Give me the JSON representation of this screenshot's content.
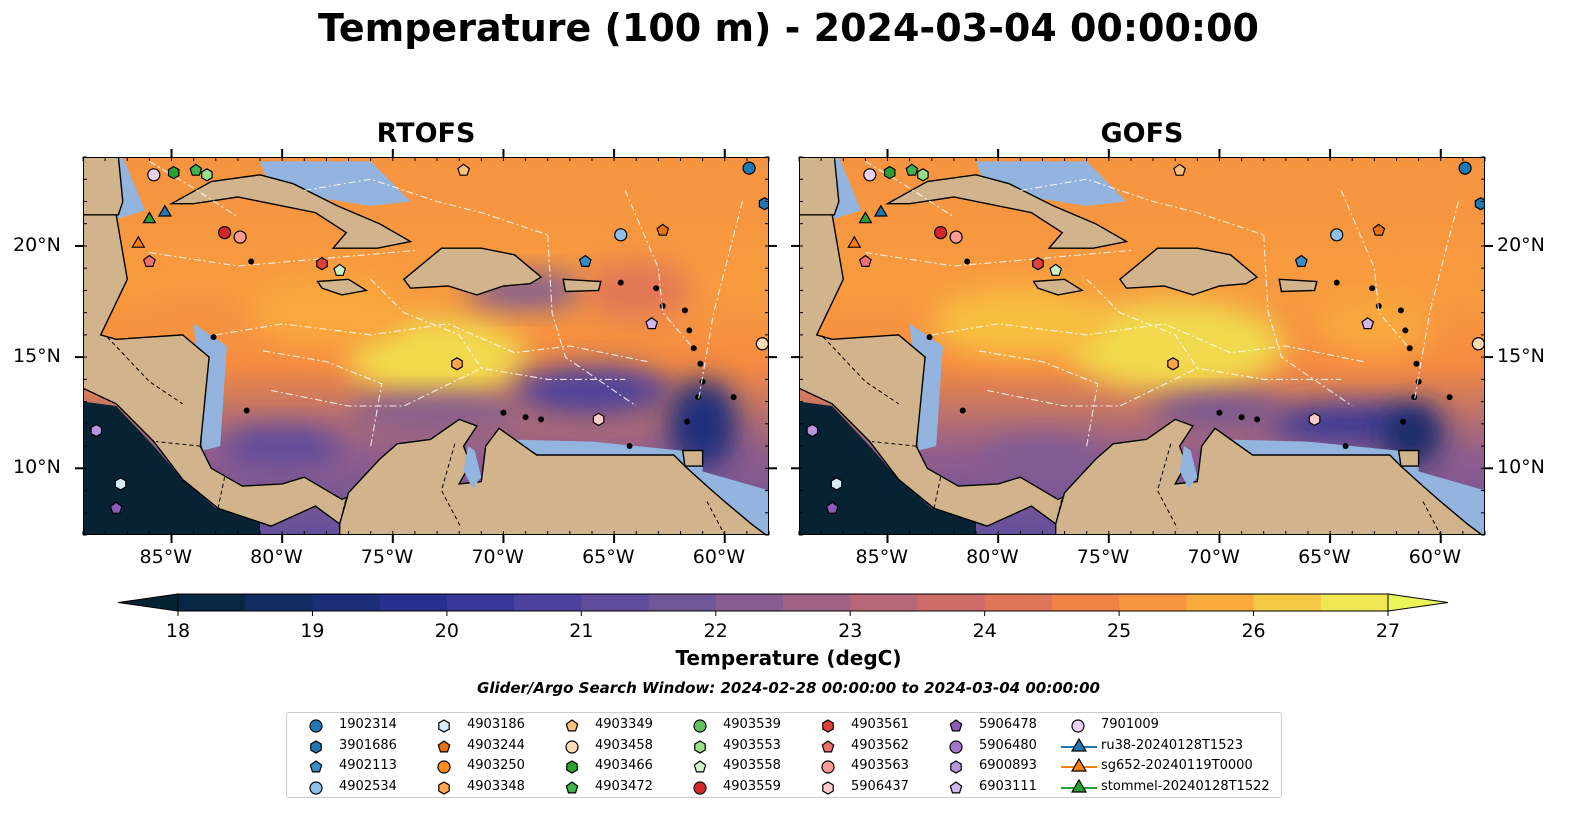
{
  "title": "Temperature (100 m) - 2024-03-04 00:00:00",
  "panels": [
    {
      "title": "RTOFS",
      "yaxis_side": "left"
    },
    {
      "title": "GOFS",
      "yaxis_side": "right"
    }
  ],
  "map_extent": {
    "lon": [
      -89,
      -58
    ],
    "lat": [
      7,
      24
    ]
  },
  "lon_ticks": [
    -85,
    -80,
    -75,
    -70,
    -65,
    -60
  ],
  "lon_tick_labels": [
    "85°W",
    "80°W",
    "75°W",
    "70°W",
    "65°W",
    "60°W"
  ],
  "lat_ticks": [
    10,
    15,
    20
  ],
  "lat_tick_labels": [
    "10°N",
    "15°N",
    "20°N"
  ],
  "colors": {
    "land": "#d2b48c",
    "shallow": "#93b4de",
    "colormap": "thermal"
  },
  "colorbar": {
    "min": 18,
    "max": 27,
    "step": 0.5,
    "ticks": [
      "18",
      "19",
      "20",
      "21",
      "22",
      "23",
      "24",
      "25",
      "26",
      "27"
    ],
    "label": "Temperature (degC)"
  },
  "search_window": "Glider/Argo Search Window: 2024-02-28 00:00:00 to 2024-03-04 00:00:00",
  "legend": [
    {
      "label": "1902314",
      "marker": "circle",
      "color": "#1f77b4"
    },
    {
      "label": "3901686",
      "marker": "hexagon",
      "color": "#1f77b4"
    },
    {
      "label": "4902113",
      "marker": "pentagon",
      "color": "#3a8cc8"
    },
    {
      "label": "4902534",
      "marker": "circle",
      "color": "#8fc0e8"
    },
    {
      "label": "4903186",
      "marker": "hexagon",
      "color": "#d6eaf8"
    },
    {
      "label": "4903244",
      "marker": "pentagon",
      "color": "#e8720c"
    },
    {
      "label": "4903250",
      "marker": "circle",
      "color": "#ff8c1a"
    },
    {
      "label": "4903348",
      "marker": "hexagon",
      "color": "#ffa54f"
    },
    {
      "label": "4903349",
      "marker": "pentagon",
      "color": "#ffc27a"
    },
    {
      "label": "4903458",
      "marker": "circle",
      "color": "#ffdcb4"
    },
    {
      "label": "4903466",
      "marker": "hexagon",
      "color": "#2ca02c"
    },
    {
      "label": "4903472",
      "marker": "pentagon",
      "color": "#3cb44b"
    },
    {
      "label": "4903539",
      "marker": "circle",
      "color": "#5ec15e"
    },
    {
      "label": "4903553",
      "marker": "hexagon",
      "color": "#98df8a"
    },
    {
      "label": "4903558",
      "marker": "pentagon",
      "color": "#cdf5c4"
    },
    {
      "label": "4903559",
      "marker": "circle",
      "color": "#d62728"
    },
    {
      "label": "4903561",
      "marker": "hexagon",
      "color": "#e0403a"
    },
    {
      "label": "4903562",
      "marker": "pentagon",
      "color": "#f07070"
    },
    {
      "label": "4903563",
      "marker": "circle",
      "color": "#ff9a96"
    },
    {
      "label": "5906437",
      "marker": "hexagon",
      "color": "#ffcccc"
    },
    {
      "label": "5906478",
      "marker": "pentagon",
      "color": "#8c5db8"
    },
    {
      "label": "5906480",
      "marker": "circle",
      "color": "#a276cc"
    },
    {
      "label": "6900893",
      "marker": "hexagon",
      "color": "#b896dc"
    },
    {
      "label": "6903111",
      "marker": "pentagon",
      "color": "#d2b8ee"
    },
    {
      "label": "7901009",
      "marker": "circle",
      "color": "#ecd2f6"
    },
    {
      "label": "ru38-20240128T1523",
      "marker": "triangle-line",
      "color": "#1f77b4"
    },
    {
      "label": "sg652-20240119T0000",
      "marker": "triangle-line",
      "color": "#ff7f0e"
    },
    {
      "label": "stommel-20240128T1522",
      "marker": "triangle-line",
      "color": "#2ca02c"
    }
  ],
  "observations": [
    {
      "id": "1902314",
      "lon": -58.9,
      "lat": 23.5
    },
    {
      "id": "3901686",
      "lon": -58.2,
      "lat": 21.9
    },
    {
      "id": "4902113",
      "lon": -66.3,
      "lat": 19.3
    },
    {
      "id": "4902534",
      "lon": -64.7,
      "lat": 20.5
    },
    {
      "id": "4903186",
      "lon": -87.3,
      "lat": 9.3
    },
    {
      "id": "4903244",
      "lon": -62.8,
      "lat": 20.7
    },
    {
      "id": "4903458",
      "lon": -58.3,
      "lat": 15.6
    },
    {
      "id": "4903349",
      "lon": -71.8,
      "lat": 23.4
    },
    {
      "id": "4903348",
      "lon": -72.1,
      "lat": 14.7
    },
    {
      "id": "4903466",
      "lon": -84.9,
      "lat": 23.3
    },
    {
      "id": "4903472",
      "lon": -83.9,
      "lat": 23.4
    },
    {
      "id": "4903553",
      "lon": -83.4,
      "lat": 23.2
    },
    {
      "id": "4903558",
      "lon": -77.4,
      "lat": 18.9
    },
    {
      "id": "4903559",
      "lon": -82.6,
      "lat": 20.6
    },
    {
      "id": "4903561",
      "lon": -78.2,
      "lat": 19.2
    },
    {
      "id": "4903562",
      "lon": -86.0,
      "lat": 19.3
    },
    {
      "id": "4903563",
      "lon": -81.9,
      "lat": 20.4
    },
    {
      "id": "5906437",
      "lon": -65.7,
      "lat": 12.2
    },
    {
      "id": "5906478",
      "lon": -87.5,
      "lat": 8.2
    },
    {
      "id": "6900893",
      "lon": -88.4,
      "lat": 11.7
    },
    {
      "id": "6903111",
      "lon": -63.3,
      "lat": 16.5
    },
    {
      "id": "7901009",
      "lon": -85.8,
      "lat": 23.2
    },
    {
      "id": "ru38-20240128T1523",
      "lon": -85.3,
      "lat": 21.5
    },
    {
      "id": "sg652-20240119T0000",
      "lon": -86.5,
      "lat": 20.1
    },
    {
      "id": "stommel-20240128T1522",
      "lon": -86.0,
      "lat": 21.2
    }
  ]
}
